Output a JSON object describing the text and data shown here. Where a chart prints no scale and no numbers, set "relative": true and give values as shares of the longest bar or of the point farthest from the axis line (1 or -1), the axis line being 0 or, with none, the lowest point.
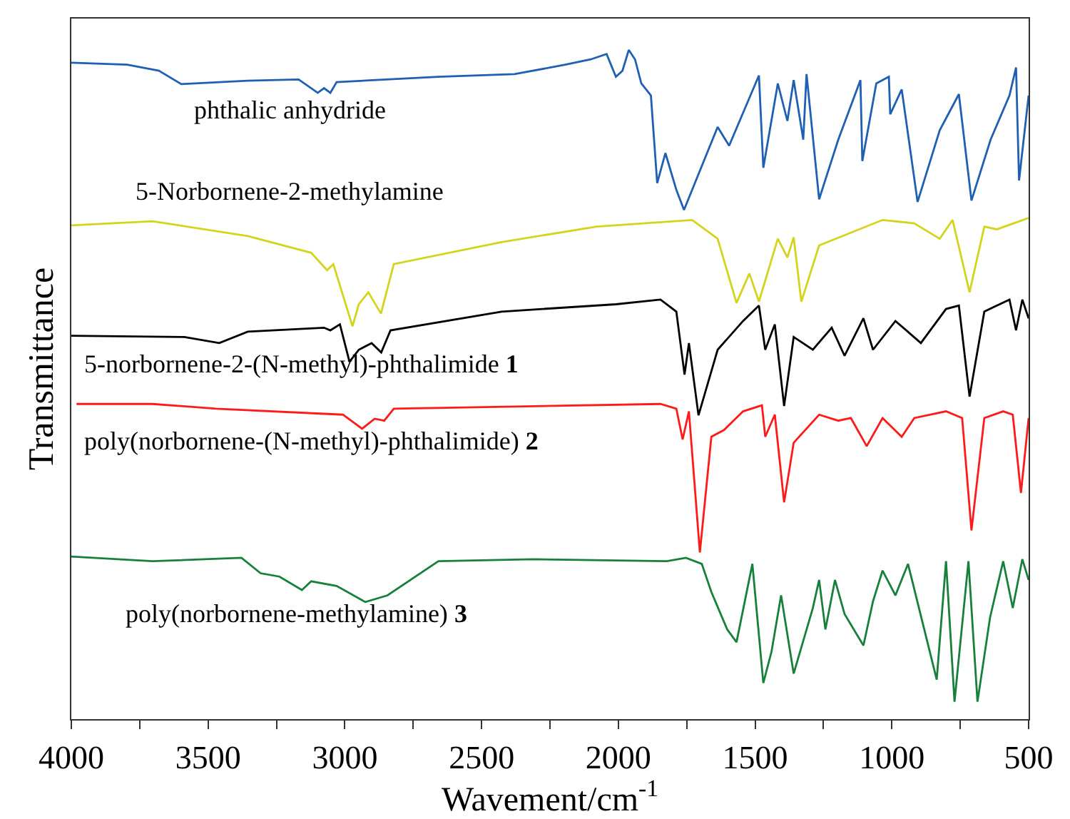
{
  "chart_data": {
    "type": "line",
    "relative": true,
    "xlabel": "Wavement/cm$^{-1}$",
    "ylabel": "Transmittance",
    "legend": false,
    "marker": "none",
    "line_style": "solid",
    "xlim": [
      4000,
      500
    ],
    "xticks": [
      4000,
      {
        "value": 3750,
        "label": null
      },
      3500,
      {
        "value": 3250,
        "label": null
      },
      3000,
      {
        "value": 2750,
        "label": null
      },
      2500,
      {
        "value": 2250,
        "label": null
      },
      2000,
      {
        "value": 1750,
        "label": null
      },
      1500,
      {
        "value": 1250,
        "label": null
      },
      1000,
      {
        "value": 750,
        "label": null
      },
      500
    ],
    "series": [
      {
        "name": "phthalic anhydride",
        "color": "#1f5fb4",
        "x": [
          4000,
          3796,
          3680,
          3598,
          3355,
          3169,
          3099,
          3076,
          3053,
          3030,
          2658,
          2380,
          2194,
          2101,
          2043,
          2009,
          1985,
          1962,
          1939,
          1916,
          1881,
          1858,
          1828,
          1788,
          1760,
          1637,
          1595,
          1486,
          1470,
          1417,
          1382,
          1359,
          1324,
          1312,
          1266,
          1196,
          1115,
          1108,
          1057,
          1011,
          1006,
          964,
          906,
          825,
          755,
          709,
          639,
          570,
          546,
          535,
          500
        ],
        "values": [
          0.981,
          0.978,
          0.969,
          0.949,
          0.954,
          0.956,
          0.936,
          0.943,
          0.936,
          0.952,
          0.96,
          0.964,
          0.978,
          0.986,
          0.994,
          0.96,
          0.969,
          1,
          0.986,
          0.95,
          0.932,
          0.801,
          0.846,
          0.791,
          0.761,
          0.885,
          0.857,
          0.962,
          0.824,
          0.95,
          0.894,
          0.955,
          0.866,
          0.964,
          0.777,
          0.866,
          0.955,
          0.834,
          0.95,
          0.96,
          0.904,
          0.941,
          0.773,
          0.88,
          0.934,
          0.775,
          0.866,
          0.932,
          0.974,
          0.805,
          0.932
        ]
      },
      {
        "name": "5-Norbornene-2-methylamine",
        "color": "#d4d41c",
        "x": [
          4000,
          3703,
          3355,
          3123,
          3065,
          3042,
          2972,
          2949,
          2914,
          2868,
          2821,
          2427,
          2079,
          1730,
          1637,
          1568,
          1521,
          1486,
          1417,
          1382,
          1359,
          1331,
          1266,
          1034,
          918,
          825,
          778,
          716,
          662,
          616,
          500
        ],
        "values": [
          0.738,
          0.744,
          0.722,
          0.697,
          0.671,
          0.68,
          0.587,
          0.62,
          0.638,
          0.606,
          0.68,
          0.713,
          0.736,
          0.746,
          0.718,
          0.622,
          0.666,
          0.624,
          0.718,
          0.69,
          0.72,
          0.624,
          0.708,
          0.746,
          0.741,
          0.718,
          0.746,
          0.638,
          0.736,
          0.732,
          0.749
        ]
      },
      {
        "name": "5-norbornene-2-(N-methyl)-phthalimide 1",
        "color": "#000000",
        "x": [
          4000,
          3587,
          3459,
          3355,
          3076,
          3053,
          3018,
          2983,
          2949,
          2902,
          2867,
          2833,
          2427,
          2009,
          1846,
          1788,
          1758,
          1742,
          1707,
          1637,
          1544,
          1486,
          1463,
          1428,
          1394,
          1359,
          1289,
          1220,
          1173,
          1104,
          1069,
          987,
          894,
          802,
          755,
          716,
          662,
          616,
          570,
          546,
          523,
          500
        ],
        "values": [
          0.573,
          0.571,
          0.562,
          0.579,
          0.585,
          0.581,
          0.59,
          0.534,
          0.552,
          0.562,
          0.548,
          0.581,
          0.609,
          0.62,
          0.627,
          0.609,
          0.515,
          0.562,
          0.454,
          0.552,
          0.595,
          0.618,
          0.552,
          0.59,
          0.468,
          0.571,
          0.552,
          0.585,
          0.543,
          0.599,
          0.552,
          0.595,
          0.562,
          0.613,
          0.618,
          0.482,
          0.609,
          0.618,
          0.627,
          0.581,
          0.627,
          0.599
        ]
      },
      {
        "name": "poly(norbornene-(N-methyl)-phthalimide) 2",
        "color": "#ff1a1a",
        "x": [
          3981,
          3703,
          3471,
          3007,
          2937,
          2891,
          2856,
          2821,
          1846,
          1788,
          1765,
          1742,
          1702,
          1660,
          1614,
          1544,
          1475,
          1463,
          1428,
          1394,
          1359,
          1266,
          1196,
          1150,
          1092,
          1034,
          964,
          918,
          802,
          743,
          709,
          662,
          593,
          558,
          528,
          500
        ],
        "values": [
          0.471,
          0.471,
          0.464,
          0.455,
          0.434,
          0.449,
          0.446,
          0.464,
          0.471,
          0.464,
          0.418,
          0.46,
          0.249,
          0.422,
          0.432,
          0.46,
          0.469,
          0.422,
          0.455,
          0.324,
          0.413,
          0.455,
          0.446,
          0.45,
          0.408,
          0.45,
          0.422,
          0.45,
          0.46,
          0.45,
          0.282,
          0.45,
          0.46,
          0.455,
          0.338,
          0.45
        ]
      },
      {
        "name": "poly(norbornene-methylamine) 3",
        "color": "#16803c",
        "x": [
          4000,
          3703,
          3378,
          3308,
          3239,
          3157,
          3123,
          3030,
          2925,
          2844,
          2658,
          2310,
          1823,
          1753,
          1695,
          1660,
          1602,
          1568,
          1510,
          1470,
          1440,
          1405,
          1359,
          1289,
          1266,
          1243,
          1208,
          1173,
          1104,
          1069,
          1034,
          987,
          941,
          836,
          802,
          771,
          720,
          687,
          641,
          593,
          558,
          523,
          500
        ],
        "values": [
          0.243,
          0.236,
          0.241,
          0.218,
          0.213,
          0.193,
          0.206,
          0.199,
          0.175,
          0.185,
          0.236,
          0.239,
          0.236,
          0.241,
          0.232,
          0.19,
          0.134,
          0.115,
          0.232,
          0.054,
          0.101,
          0.185,
          0.068,
          0.166,
          0.208,
          0.134,
          0.208,
          0.157,
          0.11,
          0.176,
          0.222,
          0.185,
          0.232,
          0.059,
          0.236,
          0.026,
          0.236,
          0.026,
          0.152,
          0.236,
          0.166,
          0.239,
          0.208
        ]
      }
    ]
  }
}
